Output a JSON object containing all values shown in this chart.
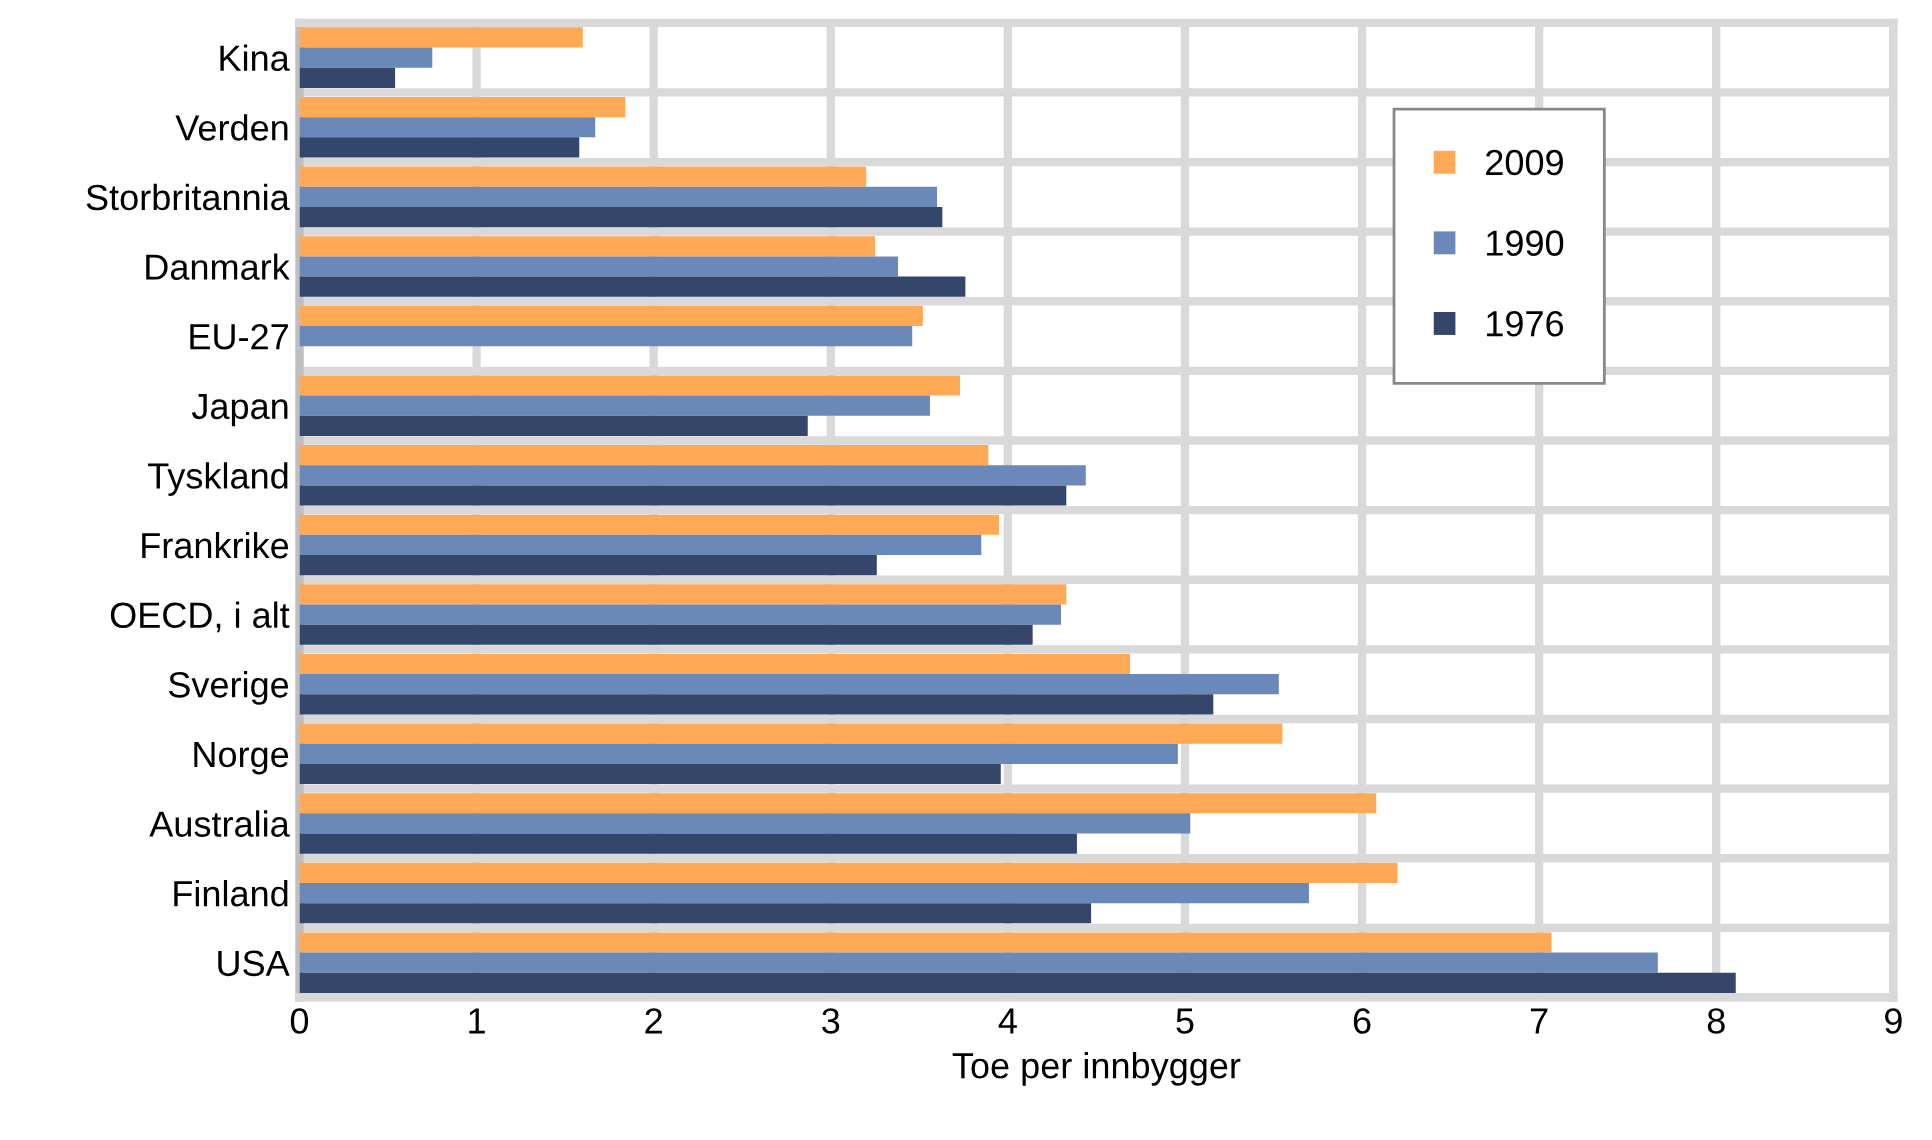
{
  "chart_data": {
    "type": "bar",
    "orientation": "horizontal",
    "xlabel": "Toe per innbygger",
    "categories": [
      "Kina",
      "Verden",
      "Storbritannia",
      "Danmark",
      "EU-27",
      "Japan",
      "Tyskland",
      "Frankrike",
      "OECD, i alt",
      "Sverige",
      "Norge",
      "Australia",
      "Finland",
      "USA"
    ],
    "series": [
      {
        "name": "2009",
        "color": "#ffa956",
        "values": [
          1.6,
          1.84,
          3.2,
          3.25,
          3.52,
          3.73,
          3.89,
          3.95,
          4.33,
          4.69,
          5.55,
          6.08,
          6.2,
          7.07
        ]
      },
      {
        "name": "1990",
        "color": "#6a88b8",
        "values": [
          0.75,
          1.67,
          3.6,
          3.38,
          3.46,
          3.56,
          4.44,
          3.85,
          4.3,
          5.53,
          4.96,
          5.03,
          5.7,
          7.67
        ]
      },
      {
        "name": "1976",
        "color": "#34476b",
        "values": [
          0.54,
          1.58,
          3.63,
          3.76,
          null,
          2.87,
          4.33,
          3.26,
          4.14,
          5.16,
          3.96,
          4.39,
          4.47,
          8.11
        ]
      }
    ],
    "xlim": [
      0,
      9
    ],
    "xticks": [
      0,
      1,
      2,
      3,
      4,
      5,
      6,
      7,
      8,
      9
    ],
    "grid": "x",
    "legend": "top right"
  }
}
